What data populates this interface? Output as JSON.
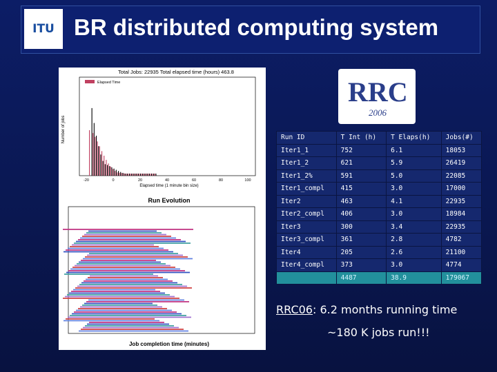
{
  "header": {
    "title": "BR distributed computing system",
    "logo": "ITU"
  },
  "histogram": {
    "title": "Total Jobs: 22935 Total elapsed time (hours) 463.8",
    "legend": "Elapsed Time",
    "ylabel": "Number of jobs",
    "xlabel": "Elapsed time (1 minute bin size)",
    "xticks": [
      "-20",
      "0",
      "20",
      "40",
      "60",
      "80",
      "100"
    ]
  },
  "evolution": {
    "title": "Run Evolution",
    "xlabel": "Job completion time (minutes)"
  },
  "rrc_logo": {
    "text": "RRC",
    "year": "2006"
  },
  "table": {
    "columns": [
      "Run ID",
      "T Int (h)",
      "T Elaps(h)",
      "Jobs(#)"
    ],
    "rows": [
      [
        "Iter1_1",
        "752",
        "6.1",
        "18053"
      ],
      [
        "Iter1_2",
        "621",
        "5.9",
        "26419"
      ],
      [
        "Iter1_2%",
        "591",
        "5.0",
        "22085"
      ],
      [
        "Iter1_compl",
        "415",
        "3.0",
        "17000"
      ],
      [
        "Iter2",
        "463",
        "4.1",
        "22935"
      ],
      [
        "Iter2_compl",
        "406",
        "3.0",
        "18984"
      ],
      [
        "Iter3",
        "300",
        "3.4",
        "22935"
      ],
      [
        "Iter3_compl",
        "361",
        "2.8",
        "4782"
      ],
      [
        "Iter4",
        "205",
        "2.6",
        "21100"
      ],
      [
        "Iter4_compl",
        "373",
        "3.0",
        "4774"
      ]
    ],
    "totals": [
      "4487",
      "38.9",
      "179067"
    ]
  },
  "summary": {
    "label": "RRC06",
    "text": ": 6.2 months running time",
    "jobs": "~180 K jobs run!!!"
  }
}
